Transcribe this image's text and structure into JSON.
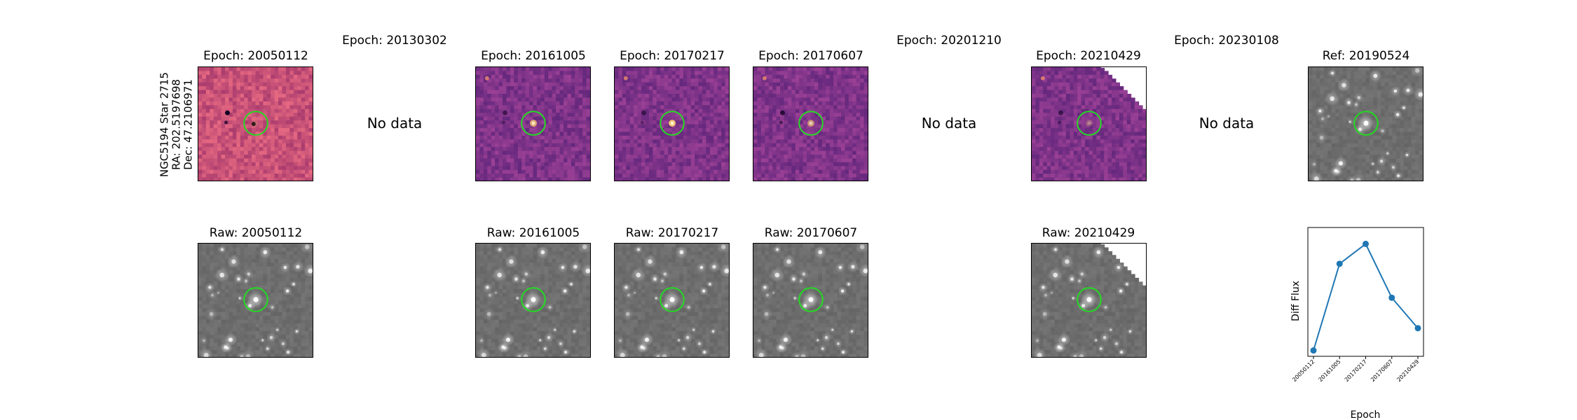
{
  "star_label": {
    "line1": "NGC5194 Star 2715",
    "line2": "RA: 202.5197698",
    "line3": "Dec: 47.2106971"
  },
  "top_row": [
    {
      "title": "Epoch: 20050112",
      "kind": "diff"
    },
    {
      "title": "Epoch: 20130302",
      "kind": "none",
      "nodata": "No data"
    },
    {
      "title": "Epoch: 20161005",
      "kind": "diff"
    },
    {
      "title": "Epoch: 20170217",
      "kind": "diff"
    },
    {
      "title": "Epoch: 20170607",
      "kind": "diff"
    },
    {
      "title": "Epoch: 20201210",
      "kind": "none",
      "nodata": "No data"
    },
    {
      "title": "Epoch: 20210429",
      "kind": "diff"
    },
    {
      "title": "Epoch: 20230108",
      "kind": "none",
      "nodata": "No data"
    },
    {
      "title": "Ref: 20190524",
      "kind": "raw"
    }
  ],
  "bottom_row": [
    {
      "title": "Raw: 20050112"
    },
    {
      "title": "Raw: 20161005"
    },
    {
      "title": "Raw: 20170217"
    },
    {
      "title": "Raw: 20170607"
    },
    {
      "title": "Raw: 20210429"
    }
  ],
  "colors": {
    "aperture": "#22dd22",
    "line": "#1f77b4",
    "diff_bg_a": "#b84a78",
    "diff_bg_b": "#7a2e86",
    "raw_bg": "#6e6e6e"
  },
  "chart_data": {
    "type": "line",
    "xlabel": "Epoch",
    "ylabel": "Diff Flux",
    "categories": [
      "20050112",
      "20161005",
      "20170217",
      "20170607",
      "20210429"
    ],
    "values": [
      0.0,
      0.74,
      0.91,
      0.45,
      0.19
    ],
    "ylim": [
      -0.05,
      1.05
    ],
    "y_ticks_shown": false
  }
}
